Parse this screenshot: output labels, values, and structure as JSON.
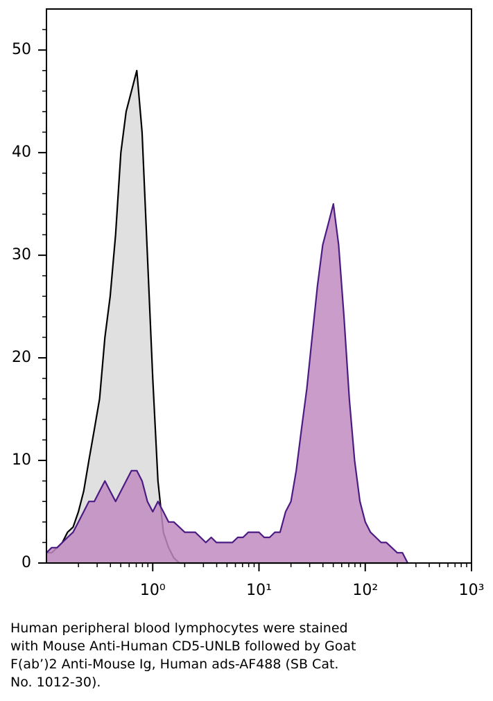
{
  "chart_data": {
    "type": "histogram-overlay",
    "x_scale": "log",
    "xlim": [
      0.1,
      1000
    ],
    "xticks": [
      {
        "value": 1,
        "label": "10⁰"
      },
      {
        "value": 10,
        "label": "10¹"
      },
      {
        "value": 100,
        "label": "10²"
      },
      {
        "value": 1000,
        "label": "10³"
      }
    ],
    "xminor_ticks": [
      0.2,
      0.3,
      0.4,
      0.5,
      0.6,
      0.7,
      0.8,
      0.9,
      2,
      3,
      4,
      5,
      6,
      7,
      8,
      9,
      20,
      30,
      40,
      50,
      60,
      70,
      80,
      90,
      200,
      300,
      400,
      500,
      600,
      700,
      800,
      900
    ],
    "ylim": [
      0,
      54
    ],
    "yticks": [
      0,
      10,
      20,
      30,
      40,
      50
    ],
    "yminor_ticks": [
      2,
      4,
      6,
      8,
      12,
      14,
      16,
      18,
      22,
      24,
      26,
      28,
      32,
      34,
      36,
      38,
      42,
      44,
      46,
      48,
      52
    ],
    "x": [
      0.1,
      0.112,
      0.126,
      0.141,
      0.158,
      0.178,
      0.2,
      0.224,
      0.251,
      0.282,
      0.316,
      0.355,
      0.398,
      0.447,
      0.501,
      0.562,
      0.631,
      0.708,
      0.794,
      0.891,
      1,
      1.12,
      1.26,
      1.41,
      1.58,
      1.78,
      2,
      2.24,
      2.51,
      2.82,
      3.16,
      3.55,
      3.98,
      4.47,
      5.01,
      5.62,
      6.31,
      7.08,
      7.94,
      8.91,
      10,
      11.2,
      12.6,
      14.1,
      15.8,
      17.8,
      20,
      22.4,
      25.1,
      28.2,
      31.6,
      35.5,
      39.8,
      44.7,
      50.1,
      56.2,
      63.1,
      70.8,
      79.4,
      89.1,
      100,
      112,
      126,
      141,
      158,
      178,
      200,
      224,
      251
    ],
    "series": [
      {
        "color": "#e0e0e0",
        "stroke": "#000000",
        "values": [
          1,
          1,
          1.5,
          2,
          3,
          3.5,
          5,
          7,
          10,
          13,
          16,
          22,
          26,
          32,
          40,
          44,
          46,
          48,
          42,
          30,
          18,
          8,
          3,
          1.5,
          0.5,
          0,
          0,
          0,
          0,
          0,
          0,
          0,
          0,
          0,
          0,
          0,
          0,
          0,
          0,
          0,
          0,
          0,
          0,
          0,
          0,
          0,
          0,
          0,
          0,
          0,
          0,
          0,
          0,
          0,
          0,
          0,
          0,
          0,
          0,
          0,
          0,
          0,
          0,
          0,
          0,
          0,
          0,
          0,
          0
        ]
      },
      {
        "color": "#c08bc0",
        "stroke": "#4b1a82",
        "values": [
          1,
          1.5,
          1.5,
          2,
          2.5,
          3,
          4,
          5,
          6,
          6,
          7,
          8,
          7,
          6,
          7,
          8,
          9,
          9,
          8,
          6,
          5,
          6,
          5,
          4,
          4,
          3.5,
          3,
          3,
          3,
          2.5,
          2,
          2.5,
          2,
          2,
          2,
          2,
          2.5,
          2.5,
          3,
          3,
          3,
          2.5,
          2.5,
          3,
          3,
          5,
          6,
          9,
          13,
          17,
          22,
          27,
          31,
          33,
          35,
          31,
          24,
          16,
          10,
          6,
          4,
          3,
          2.5,
          2,
          2,
          1.5,
          1,
          1,
          0
        ]
      }
    ],
    "caption": [
      "Human peripheral blood lymphocytes were stained",
      "with Mouse Anti-Human CD5-UNLB followed by Goat",
      "F(ab’)2 Anti-Mouse Ig, Human ads-AF488 (SB Cat.",
      "No. 1012-30)."
    ]
  }
}
